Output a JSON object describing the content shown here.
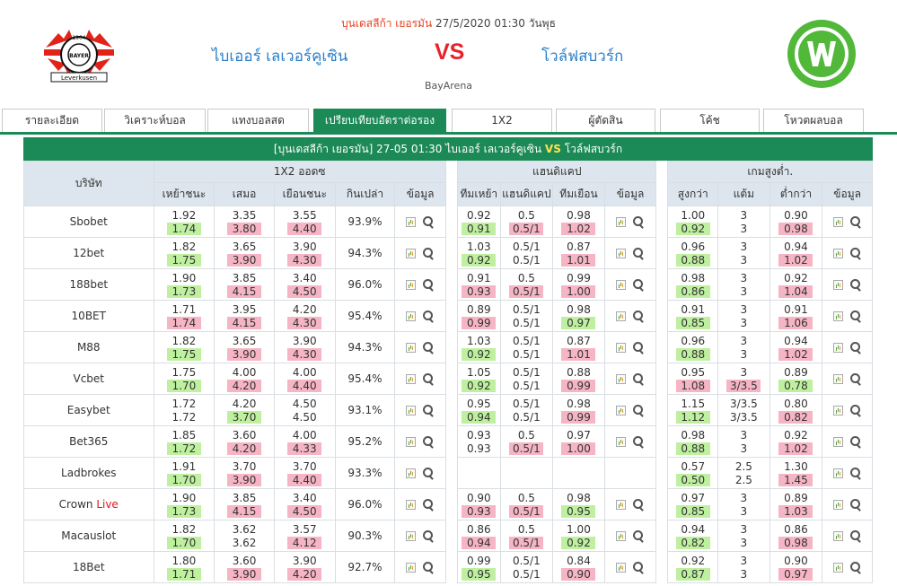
{
  "header": {
    "league": "บุนเดสลีก้า เยอรมัน",
    "datetime": "27/5/2020 01:30 วันพุธ",
    "home": "ไบเออร์ เลเวอร์คูเซิน",
    "vs": "VS",
    "away": "โวล์ฟสบวร์ก",
    "venue": "BayArena",
    "home_logo_text_top": "1904",
    "home_logo_text_mid": "BAYER",
    "home_logo_text_bot": "Leverkusen",
    "home_logo_color": "#e2231a",
    "away_logo_color": "#52b83a"
  },
  "tabs": [
    "รายละเอียด",
    "วิเคราะห์บอล",
    "แทงบอลสด",
    "เปรียบเทียบอัตราต่อรอง",
    "1X2",
    "ผู้ตัดสิน",
    "โค้ช",
    "โหวตผลบอล"
  ],
  "active_tab_index": 3,
  "match_bar": {
    "text_left": "[บุนเดสลีก้า เยอรมัน]  27-05 01:30  ไบเออร์ เลเวอร์คูเซิน",
    "vs": "VS",
    "text_right": "โวล์ฟสบวร์ก"
  },
  "columns": {
    "company": "บริษัท",
    "group_1x2": "1X2 ออดซ",
    "group_hdp": "แฮนดิแคป",
    "group_ou": "เกมสูงต่ำ.",
    "x_home": "เหย้าชนะ",
    "x_draw": "เสมอ",
    "x_away": "เยือนชนะ",
    "x_return": "กินเปล่า",
    "x_info": "ข้อมูล",
    "h_home": "ทีมเหย้า",
    "h_line": "แฮนดิแคป",
    "h_away": "ทีมเยือน",
    "h_info": "ข้อมูล",
    "o_over": "สูงกว่า",
    "o_line": "แต้ม",
    "o_under": "ต่ำกว่า",
    "o_info": "ข้อมูล"
  },
  "colors": {
    "accent": "#1b8a56",
    "up": "#bff0a0",
    "down": "#f6b5c4"
  },
  "rows": [
    {
      "name": "Sbobet",
      "live": "",
      "x": [
        [
          "1.92",
          "1.74",
          "g"
        ],
        [
          "3.35",
          "3.80",
          "r"
        ],
        [
          "3.55",
          "4.40",
          "r"
        ]
      ],
      "ret": "93.9%",
      "h": [
        [
          "0.92",
          "0.91",
          "g"
        ],
        [
          "0.5",
          "0.5/1",
          "r"
        ],
        [
          "0.98",
          "1.02",
          "r"
        ]
      ],
      "o": [
        [
          "1.00",
          "0.92",
          "g"
        ],
        [
          "3",
          "3",
          ""
        ],
        [
          "0.90",
          "0.98",
          "r"
        ]
      ]
    },
    {
      "name": "12bet",
      "live": "",
      "x": [
        [
          "1.82",
          "1.75",
          "g"
        ],
        [
          "3.65",
          "3.90",
          "r"
        ],
        [
          "3.90",
          "4.30",
          "r"
        ]
      ],
      "ret": "94.3%",
      "h": [
        [
          "1.03",
          "0.92",
          "g"
        ],
        [
          "0.5/1",
          "0.5/1",
          ""
        ],
        [
          "0.87",
          "1.01",
          "r"
        ]
      ],
      "o": [
        [
          "0.96",
          "0.88",
          "g"
        ],
        [
          "3",
          "3",
          ""
        ],
        [
          "0.94",
          "1.02",
          "r"
        ]
      ]
    },
    {
      "name": "188bet",
      "live": "",
      "x": [
        [
          "1.90",
          "1.73",
          "g"
        ],
        [
          "3.85",
          "4.15",
          "r"
        ],
        [
          "3.40",
          "4.50",
          "r"
        ]
      ],
      "ret": "96.0%",
      "h": [
        [
          "0.91",
          "0.93",
          "r"
        ],
        [
          "0.5",
          "0.5/1",
          "r"
        ],
        [
          "0.99",
          "1.00",
          "r"
        ]
      ],
      "o": [
        [
          "0.98",
          "0.86",
          "g"
        ],
        [
          "3",
          "3",
          ""
        ],
        [
          "0.92",
          "1.04",
          "r"
        ]
      ]
    },
    {
      "name": "10BET",
      "live": "",
      "x": [
        [
          "1.71",
          "1.74",
          "r"
        ],
        [
          "3.95",
          "4.15",
          "r"
        ],
        [
          "4.20",
          "4.30",
          "r"
        ]
      ],
      "ret": "95.4%",
      "h": [
        [
          "0.89",
          "0.99",
          "r"
        ],
        [
          "0.5/1",
          "0.5/1",
          ""
        ],
        [
          "0.98",
          "0.97",
          "g"
        ]
      ],
      "o": [
        [
          "0.91",
          "0.85",
          "g"
        ],
        [
          "3",
          "3",
          ""
        ],
        [
          "0.91",
          "1.06",
          "r"
        ]
      ]
    },
    {
      "name": "M88",
      "live": "",
      "x": [
        [
          "1.82",
          "1.75",
          "g"
        ],
        [
          "3.65",
          "3.90",
          "r"
        ],
        [
          "3.90",
          "4.30",
          "r"
        ]
      ],
      "ret": "94.3%",
      "h": [
        [
          "1.03",
          "0.92",
          "g"
        ],
        [
          "0.5/1",
          "0.5/1",
          ""
        ],
        [
          "0.87",
          "1.01",
          "r"
        ]
      ],
      "o": [
        [
          "0.96",
          "0.88",
          "g"
        ],
        [
          "3",
          "3",
          ""
        ],
        [
          "0.94",
          "1.02",
          "r"
        ]
      ]
    },
    {
      "name": "Vcbet",
      "live": "",
      "x": [
        [
          "1.75",
          "1.70",
          "g"
        ],
        [
          "4.00",
          "4.20",
          "r"
        ],
        [
          "4.00",
          "4.40",
          "r"
        ]
      ],
      "ret": "95.4%",
      "h": [
        [
          "1.05",
          "0.92",
          "g"
        ],
        [
          "0.5/1",
          "0.5/1",
          ""
        ],
        [
          "0.88",
          "0.99",
          "r"
        ]
      ],
      "o": [
        [
          "0.95",
          "1.08",
          "r"
        ],
        [
          "3",
          "3/3.5",
          "r"
        ],
        [
          "0.89",
          "0.78",
          "g"
        ]
      ]
    },
    {
      "name": "Easybet",
      "live": "",
      "x": [
        [
          "1.72",
          "1.72",
          ""
        ],
        [
          "4.20",
          "3.70",
          "g"
        ],
        [
          "4.50",
          "4.50",
          ""
        ]
      ],
      "ret": "93.1%",
      "h": [
        [
          "0.95",
          "0.94",
          "g"
        ],
        [
          "0.5/1",
          "0.5/1",
          ""
        ],
        [
          "0.98",
          "0.99",
          "r"
        ]
      ],
      "o": [
        [
          "1.15",
          "1.12",
          "g"
        ],
        [
          "3/3.5",
          "3/3.5",
          ""
        ],
        [
          "0.80",
          "0.82",
          "r"
        ]
      ]
    },
    {
      "name": "Bet365",
      "live": "",
      "x": [
        [
          "1.85",
          "1.72",
          "g"
        ],
        [
          "3.60",
          "4.20",
          "r"
        ],
        [
          "4.00",
          "4.33",
          "r"
        ]
      ],
      "ret": "95.2%",
      "h": [
        [
          "0.93",
          "0.93",
          ""
        ],
        [
          "0.5",
          "0.5/1",
          "r"
        ],
        [
          "0.97",
          "1.00",
          "r"
        ]
      ],
      "o": [
        [
          "0.98",
          "0.88",
          "g"
        ],
        [
          "3",
          "3",
          ""
        ],
        [
          "0.92",
          "1.02",
          "r"
        ]
      ]
    },
    {
      "name": "Ladbrokes",
      "live": "",
      "x": [
        [
          "1.91",
          "1.70",
          "g"
        ],
        [
          "3.70",
          "3.90",
          "r"
        ],
        [
          "3.70",
          "4.40",
          "r"
        ]
      ],
      "ret": "93.3%",
      "h": [
        [
          "",
          "",
          ""
        ],
        [
          "",
          "",
          ""
        ],
        [
          "",
          "",
          ""
        ]
      ],
      "o": [
        [
          "0.57",
          "0.50",
          "g"
        ],
        [
          "2.5",
          "2.5",
          ""
        ],
        [
          "1.30",
          "1.45",
          "r"
        ]
      ]
    },
    {
      "name": "Crown",
      "live": "Live",
      "x": [
        [
          "1.90",
          "1.73",
          "g"
        ],
        [
          "3.85",
          "4.15",
          "r"
        ],
        [
          "3.40",
          "4.50",
          "r"
        ]
      ],
      "ret": "96.0%",
      "h": [
        [
          "0.90",
          "0.93",
          "r"
        ],
        [
          "0.5",
          "0.5/1",
          "r"
        ],
        [
          "0.98",
          "0.95",
          "g"
        ]
      ],
      "o": [
        [
          "0.97",
          "0.85",
          "g"
        ],
        [
          "3",
          "3",
          ""
        ],
        [
          "0.89",
          "1.03",
          "r"
        ]
      ]
    },
    {
      "name": "Macauslot",
      "live": "",
      "x": [
        [
          "1.82",
          "1.70",
          "g"
        ],
        [
          "3.62",
          "3.62",
          ""
        ],
        [
          "3.57",
          "4.12",
          "r"
        ]
      ],
      "ret": "90.3%",
      "h": [
        [
          "0.86",
          "0.94",
          "r"
        ],
        [
          "0.5",
          "0.5/1",
          "r"
        ],
        [
          "1.00",
          "0.92",
          "g"
        ]
      ],
      "o": [
        [
          "0.94",
          "0.82",
          "g"
        ],
        [
          "3",
          "3",
          ""
        ],
        [
          "0.86",
          "0.98",
          "r"
        ]
      ]
    },
    {
      "name": "18Bet",
      "live": "",
      "x": [
        [
          "1.80",
          "1.71",
          "g"
        ],
        [
          "3.60",
          "3.90",
          "r"
        ],
        [
          "3.90",
          "4.20",
          "r"
        ]
      ],
      "ret": "92.7%",
      "h": [
        [
          "0.99",
          "0.95",
          "g"
        ],
        [
          "0.5/1",
          "0.5/1",
          ""
        ],
        [
          "0.84",
          "0.90",
          "r"
        ]
      ],
      "o": [
        [
          "0.92",
          "0.87",
          "g"
        ],
        [
          "3",
          "3",
          ""
        ],
        [
          "0.90",
          "0.97",
          "r"
        ]
      ]
    }
  ]
}
